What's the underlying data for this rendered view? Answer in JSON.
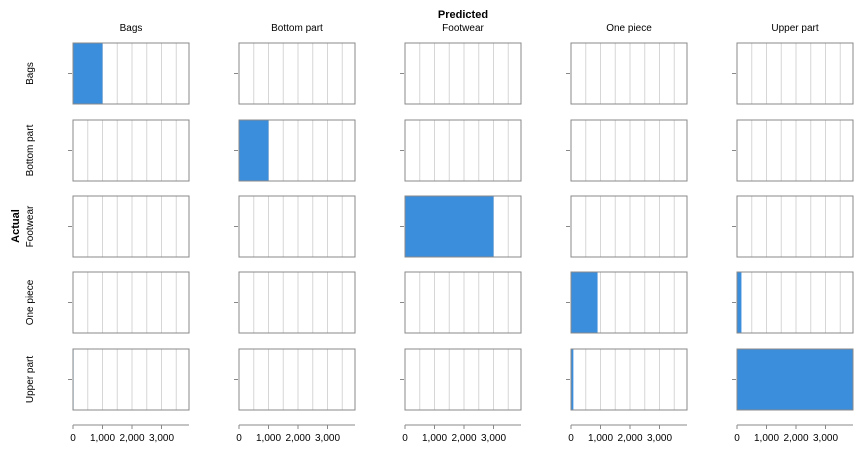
{
  "chart_data": {
    "type": "bar",
    "title": "Predicted",
    "ylabel": "Actual",
    "columns": [
      "Bags",
      "Bottom part",
      "Footwear",
      "One piece",
      "Upper part"
    ],
    "rows": [
      "Bags",
      "Bottom part",
      "Footwear",
      "One piece",
      "Upper part"
    ],
    "values": [
      [
        1000,
        0,
        0,
        0,
        10
      ],
      [
        0,
        1000,
        0,
        0,
        5
      ],
      [
        0,
        0,
        3000,
        0,
        0
      ],
      [
        0,
        10,
        0,
        900,
        150
      ],
      [
        20,
        0,
        0,
        80,
        4000
      ]
    ],
    "xlim": [
      0,
      4000
    ],
    "x_ticks": [
      0,
      1000,
      2000,
      3000
    ],
    "x_tick_labels": [
      "0",
      "1,000",
      "2,000",
      "3,000"
    ],
    "bar_color": "#3a8edc"
  }
}
